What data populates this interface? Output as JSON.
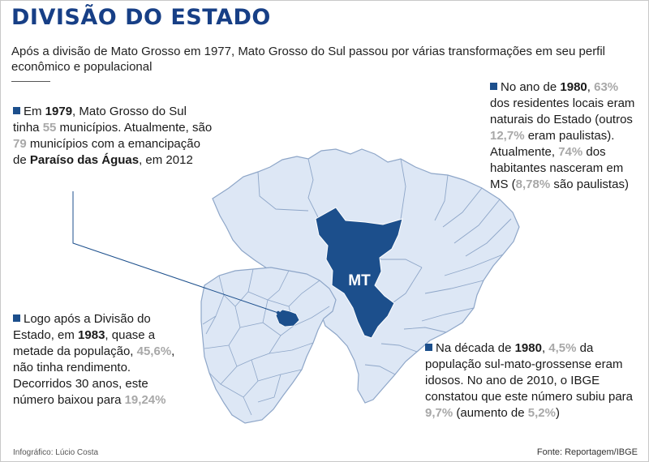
{
  "title": "DIVISÃO DO ESTADO",
  "subtitle": "Após a divisão de Mato Grosso em 1977, Mato Grosso do Sul passou por várias transformações em seu perfil econômico e populacional",
  "map": {
    "state_label": "MT",
    "colors": {
      "state": "#1c4f8c",
      "land": "#dde7f5",
      "border": "#8ea6c8",
      "leader": "#1c4f8c"
    }
  },
  "notes": {
    "municipios": {
      "p1": "Em ",
      "y1": "1979",
      "p2": ", Mato Grosso do Sul tinha ",
      "n1": "55",
      "p3": " municípios. Atualmente, são ",
      "n2": "79",
      "p4": " municípios com a emancipação de ",
      "place": "Paraíso das Águas",
      "p5": ", em 2012"
    },
    "residentes": {
      "p1": "No ano de ",
      "y1": "1980",
      "p2": ", ",
      "n1": "63%",
      "p3": " dos residentes locais eram naturais do Estado (outros ",
      "n2": "12,7%",
      "p4": " eram paulistas). Atualmente, ",
      "n3": "74%",
      "p5": " dos habitantes nasceram em MS (",
      "n4": "8,78%",
      "p6": " são paulistas)"
    },
    "renda": {
      "p1": "Logo após a Divisão do Estado, em ",
      "y1": "1983",
      "p2": ", quase a metade da população, ",
      "n1": "45,6%",
      "p3": ", não tinha rendimento. Decorridos 30 anos, este número baixou para ",
      "n2": "19,24%"
    },
    "idosos": {
      "p1": "Na década de ",
      "y1": "1980",
      "p2": ", ",
      "n1": "4,5%",
      "p3": " da população sul-mato-grossense eram  idosos. No ano de 2010, o IBGE constatou que este número subiu para ",
      "n2": "9,7%",
      "p4": " (aumento de ",
      "n3": "5,2%",
      "p5": ")"
    }
  },
  "credit": "Infográfico: Lúcio Costa",
  "source": "Fonte: Reportagem/IBGE"
}
